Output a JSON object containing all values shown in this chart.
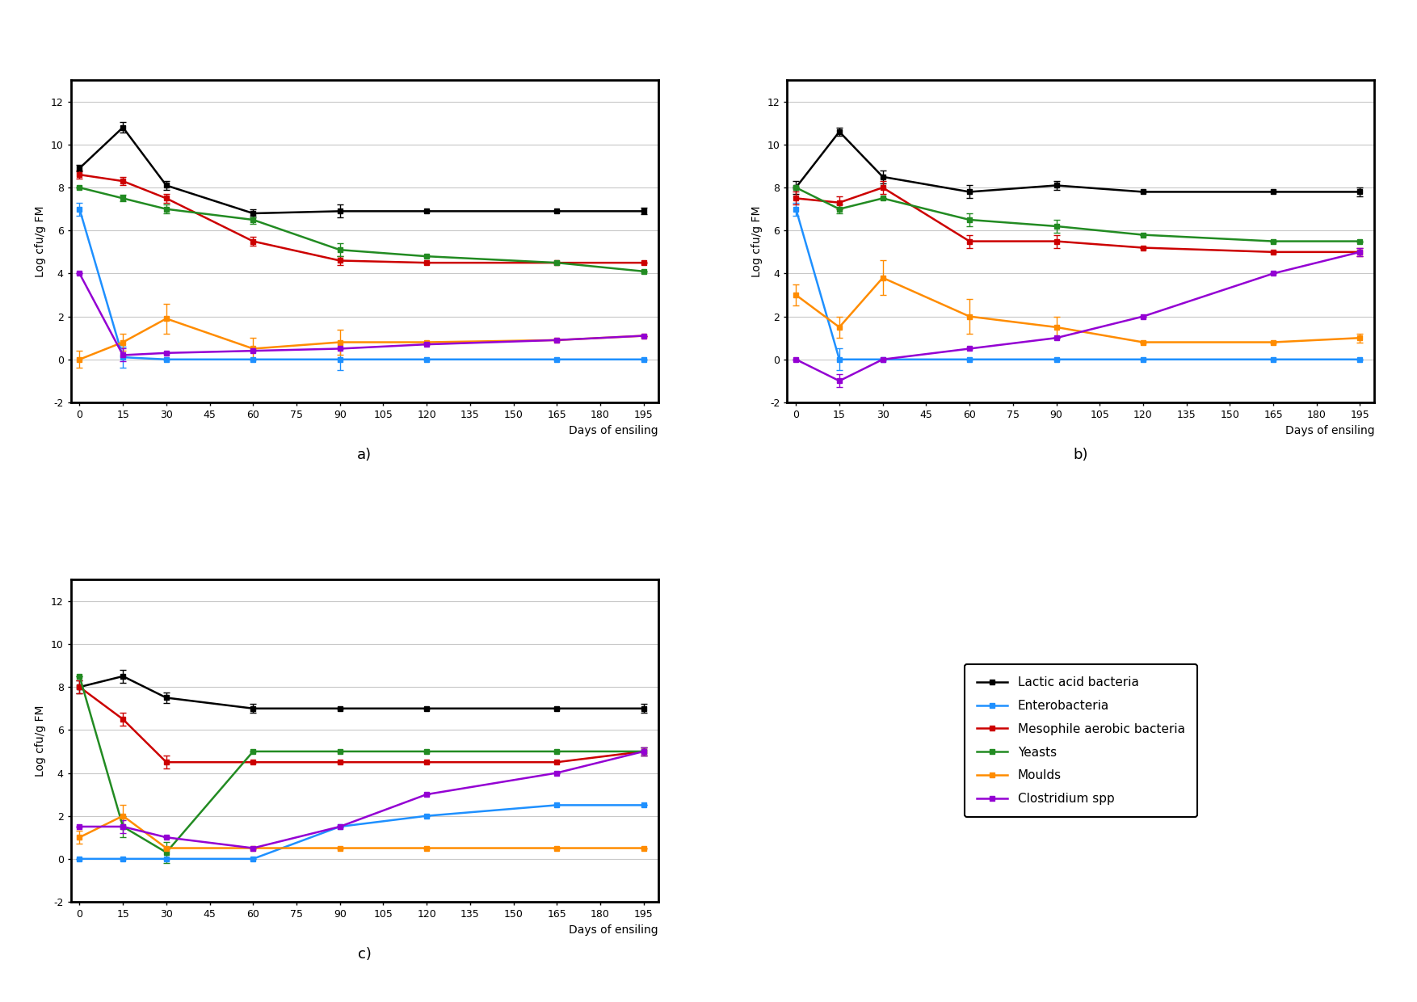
{
  "x_ticks": [
    0,
    15,
    30,
    45,
    60,
    75,
    90,
    105,
    120,
    135,
    150,
    165,
    180,
    195
  ],
  "xlabel": "Days of ensiling",
  "ylabel": "Log cfu/g FM",
  "ylim": [
    -2,
    13
  ],
  "yticks": [
    -2,
    0,
    2,
    4,
    6,
    8,
    10,
    12
  ],
  "panel_a": {
    "LAB": {
      "y": [
        8.9,
        10.8,
        8.1,
        6.8,
        6.9,
        6.9,
        6.9,
        6.9
      ],
      "yerr": [
        0.15,
        0.25,
        0.2,
        0.2,
        0.3,
        0.0,
        0.0,
        0.15
      ]
    },
    "Entero": {
      "y": [
        7.0,
        0.1,
        0.0,
        0.0,
        0.0,
        0.0,
        0.0,
        0.0
      ],
      "yerr": [
        0.3,
        0.5,
        0.0,
        0.0,
        0.5,
        0.0,
        0.0,
        0.0
      ]
    },
    "Mesophile": {
      "y": [
        8.6,
        8.3,
        7.5,
        5.5,
        4.6,
        4.5,
        4.5,
        4.5
      ],
      "yerr": [
        0.2,
        0.2,
        0.2,
        0.2,
        0.2,
        0.0,
        0.0,
        0.0
      ]
    },
    "Yeasts": {
      "y": [
        8.0,
        7.5,
        7.0,
        6.5,
        5.1,
        4.8,
        4.5,
        4.1
      ],
      "yerr": [
        0.0,
        0.15,
        0.2,
        0.2,
        0.3,
        0.0,
        0.0,
        0.0
      ]
    },
    "Moulds": {
      "y": [
        0.0,
        0.8,
        1.9,
        0.5,
        0.8,
        0.8,
        0.9,
        1.1
      ],
      "yerr": [
        0.4,
        0.4,
        0.7,
        0.5,
        0.6,
        0.0,
        0.0,
        0.0
      ]
    },
    "Clostridium": {
      "y": [
        4.0,
        0.2,
        0.3,
        0.4,
        0.5,
        0.7,
        0.9,
        1.1
      ],
      "yerr": [
        0.0,
        0.3,
        0.0,
        0.0,
        0.0,
        0.0,
        0.0,
        0.0
      ]
    }
  },
  "panel_b": {
    "LAB": {
      "y": [
        8.0,
        10.6,
        8.5,
        7.8,
        8.1,
        7.8,
        7.8,
        7.8
      ],
      "yerr": [
        0.3,
        0.2,
        0.3,
        0.3,
        0.2,
        0.0,
        0.0,
        0.2
      ]
    },
    "Entero": {
      "y": [
        7.0,
        0.0,
        0.0,
        0.0,
        0.0,
        0.0,
        0.0,
        0.0
      ],
      "yerr": [
        0.3,
        0.5,
        0.0,
        0.0,
        0.0,
        0.0,
        0.0,
        0.0
      ]
    },
    "Mesophile": {
      "y": [
        7.5,
        7.3,
        8.0,
        5.5,
        5.5,
        5.2,
        5.0,
        5.0
      ],
      "yerr": [
        0.3,
        0.3,
        0.3,
        0.3,
        0.3,
        0.0,
        0.0,
        0.2
      ]
    },
    "Yeasts": {
      "y": [
        8.0,
        7.0,
        7.5,
        6.5,
        6.2,
        5.8,
        5.5,
        5.5
      ],
      "yerr": [
        0.0,
        0.2,
        0.0,
        0.3,
        0.3,
        0.0,
        0.0,
        0.0
      ]
    },
    "Moulds": {
      "y": [
        3.0,
        1.5,
        3.8,
        2.0,
        1.5,
        0.8,
        0.8,
        1.0
      ],
      "yerr": [
        0.5,
        0.5,
        0.8,
        0.8,
        0.5,
        0.0,
        0.0,
        0.2
      ]
    },
    "Clostridium": {
      "y": [
        0.0,
        -1.0,
        0.0,
        0.5,
        1.0,
        2.0,
        4.0,
        5.0
      ],
      "yerr": [
        0.0,
        0.3,
        0.0,
        0.0,
        0.0,
        0.0,
        0.0,
        0.2
      ]
    }
  },
  "panel_c": {
    "LAB": {
      "y": [
        8.0,
        8.5,
        7.5,
        7.0,
        7.0,
        7.0,
        7.0,
        7.0
      ],
      "yerr": [
        0.3,
        0.3,
        0.25,
        0.2,
        0.0,
        0.0,
        0.0,
        0.2
      ]
    },
    "Entero": {
      "y": [
        0.0,
        0.0,
        0.0,
        0.0,
        1.5,
        2.0,
        2.5,
        2.5
      ],
      "yerr": [
        0.0,
        0.0,
        0.0,
        0.0,
        0.0,
        0.0,
        0.0,
        0.0
      ]
    },
    "Mesophile": {
      "y": [
        8.0,
        6.5,
        4.5,
        4.5,
        4.5,
        4.5,
        4.5,
        5.0
      ],
      "yerr": [
        0.3,
        0.3,
        0.3,
        0.0,
        0.0,
        0.0,
        0.0,
        0.2
      ]
    },
    "Yeasts": {
      "y": [
        8.5,
        1.5,
        0.3,
        5.0,
        5.0,
        5.0,
        5.0,
        5.0
      ],
      "yerr": [
        0.0,
        0.5,
        0.5,
        0.0,
        0.0,
        0.0,
        0.0,
        0.2
      ]
    },
    "Moulds": {
      "y": [
        1.0,
        2.0,
        0.5,
        0.5,
        0.5,
        0.5,
        0.5,
        0.5
      ],
      "yerr": [
        0.3,
        0.5,
        0.0,
        0.0,
        0.0,
        0.0,
        0.0,
        0.0
      ]
    },
    "Clostridium": {
      "y": [
        1.5,
        1.5,
        1.0,
        0.5,
        1.5,
        3.0,
        4.0,
        5.0
      ],
      "yerr": [
        0.0,
        0.3,
        0.0,
        0.0,
        0.0,
        0.0,
        0.0,
        0.2
      ]
    }
  },
  "x_vals": [
    0,
    15,
    30,
    60,
    90,
    120,
    165,
    195
  ],
  "colors": {
    "LAB": "#000000",
    "Entero": "#1e90ff",
    "Mesophile": "#cc0000",
    "Yeasts": "#228b22",
    "Moulds": "#ff8c00",
    "Clostridium": "#9400d3"
  },
  "legend_labels": {
    "LAB": "Lactic acid bacteria",
    "Entero": "Enterobacteria",
    "Mesophile": "Mesophile aerobic bacteria",
    "Yeasts": "Yeasts",
    "Moulds": "Moulds",
    "Clostridium": "Clostridium spp"
  },
  "panel_labels": [
    "a)",
    "b)",
    "c)"
  ],
  "background_color": "#ffffff",
  "grid_color": "#c8c8c8",
  "spine_linewidth": 2.0,
  "line_linewidth": 1.8,
  "marker": "s",
  "markersize": 4,
  "capsize": 3,
  "elinewidth": 1.0,
  "tick_fontsize": 9,
  "label_fontsize": 10,
  "panel_label_fontsize": 13,
  "legend_fontsize": 11
}
